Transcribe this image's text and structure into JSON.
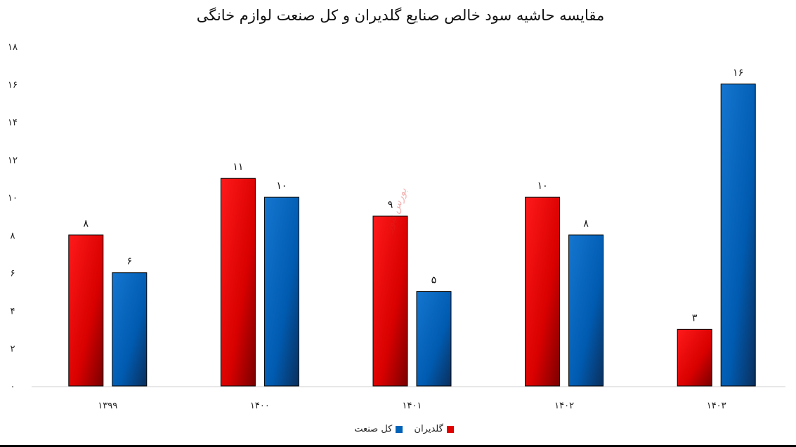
{
  "chart_data": {
    "type": "bar",
    "title": "مقایسه حاشیه سود خالص صنایع گلدیران و کل صنعت لوازم خانگی",
    "categories": [
      "۱۳۹۹",
      "۱۴۰۰",
      "۱۴۰۱",
      "۱۴۰۲",
      "۱۴۰۳"
    ],
    "series": [
      {
        "name": "گلدیران",
        "values": [
          8,
          11,
          9,
          10,
          3
        ],
        "labels": [
          "۸",
          "۱۱",
          "۹",
          "۱۰",
          "۳"
        ],
        "color": "#e00000"
      },
      {
        "name": "کل صنعت",
        "values": [
          6,
          10,
          5,
          8,
          16
        ],
        "labels": [
          "۶",
          "۱۰",
          "۵",
          "۸",
          "۱۶"
        ],
        "color": "#0063b8"
      }
    ],
    "y_ticks": [
      {
        "value": 0,
        "label": "۰"
      },
      {
        "value": 2,
        "label": "۲"
      },
      {
        "value": 4,
        "label": "۴"
      },
      {
        "value": 6,
        "label": "۶"
      },
      {
        "value": 8,
        "label": "۸"
      },
      {
        "value": 10,
        "label": "۱۰"
      },
      {
        "value": 12,
        "label": "۱۲"
      },
      {
        "value": 14,
        "label": "۱۴"
      },
      {
        "value": 16,
        "label": "۱۶"
      },
      {
        "value": 18,
        "label": "۱۸"
      }
    ],
    "ylim": [
      0,
      18
    ],
    "grid": false,
    "legend_position": "bottom"
  },
  "watermark": "بورس نیوز"
}
